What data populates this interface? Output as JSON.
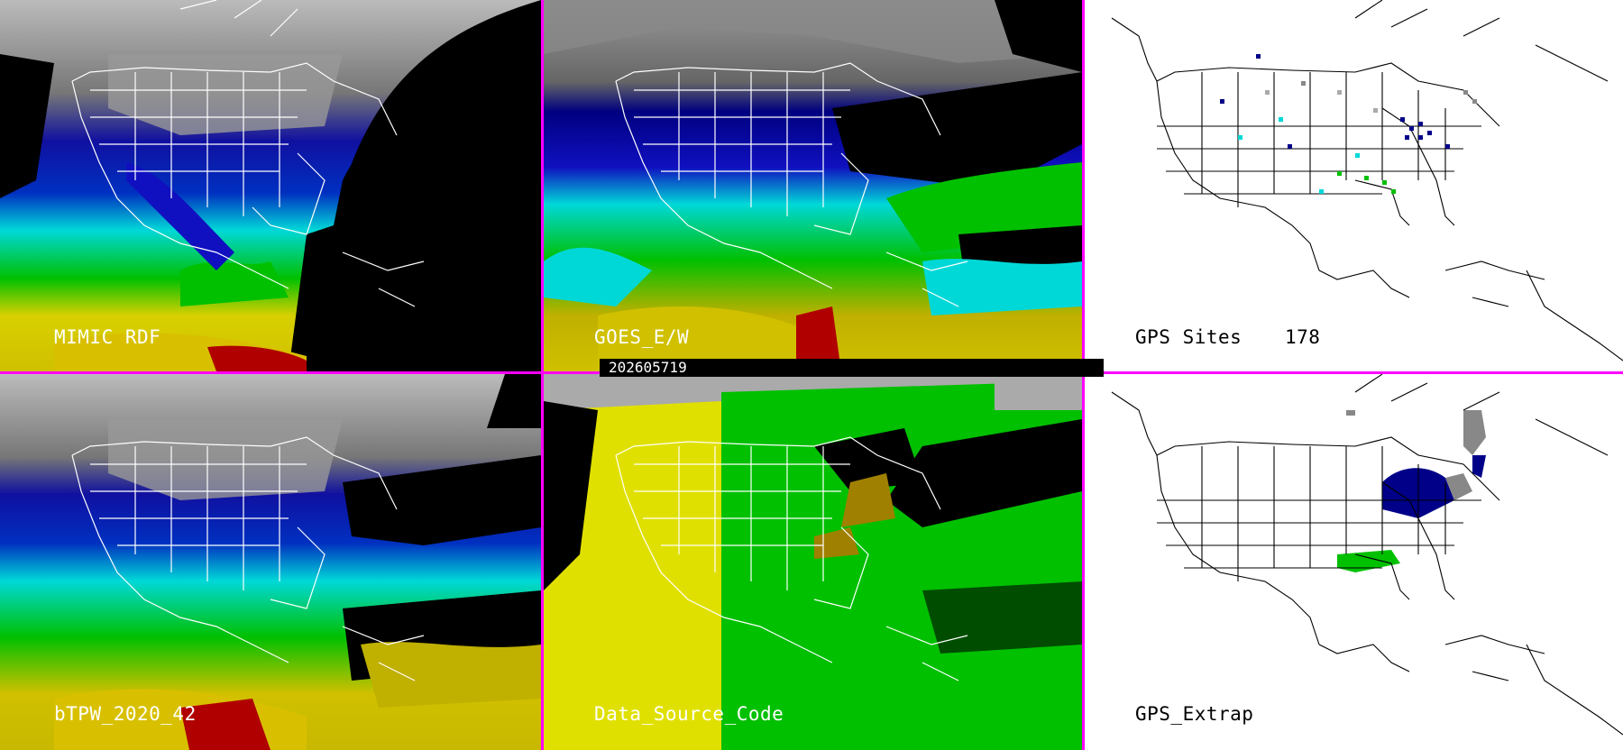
{
  "timestamp": "202605719",
  "panels": {
    "mimic": {
      "label": "MIMIC RDF"
    },
    "goes": {
      "label": "GOES_E/W"
    },
    "gps_sites": {
      "label": "GPS Sites",
      "count": "178"
    },
    "btpw": {
      "label": "bTPW_2020_42"
    },
    "data_source": {
      "label": "Data_Source_Code"
    },
    "gps_extrap": {
      "label": "GPS_Extrap"
    }
  },
  "colors": {
    "divider": "#ff00ff",
    "cloud_gray": "#aaaaaa",
    "dark_blue": "#000088",
    "blue": "#1010c0",
    "cyan": "#00e0e0",
    "green": "#00c000",
    "yellow": "#e0e000",
    "olive": "#a08000",
    "red": "#b00000"
  }
}
